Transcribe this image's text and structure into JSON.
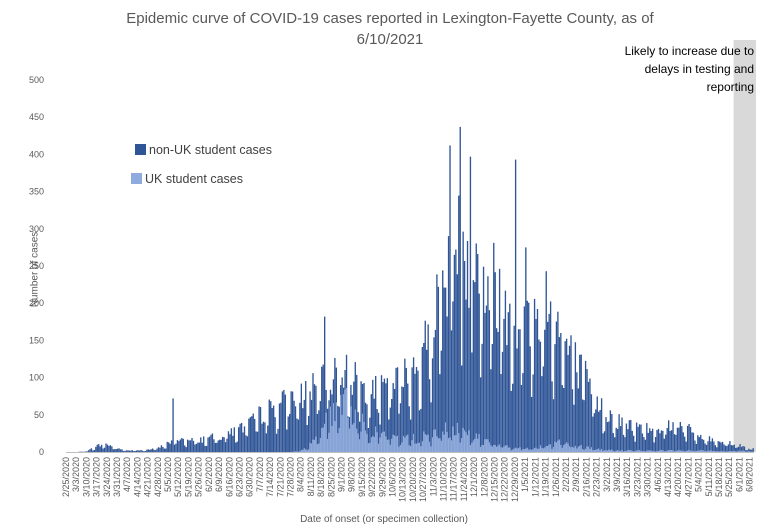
{
  "chart_data": {
    "type": "bar",
    "stacked": true,
    "title": "Epidemic curve of COVID-19 cases reported in Lexington-Fayette County, as of",
    "title_line2": "6/10/2021",
    "xlabel": "Date of onset (or specimen collection)",
    "ylabel": "Number of cases",
    "ylim": [
      0,
      500
    ],
    "yticks": [
      "0",
      "50",
      "100",
      "150",
      "200",
      "250",
      "300",
      "350",
      "400",
      "450",
      "500"
    ],
    "x_range": [
      "2/25/2020",
      "6/10/2021"
    ],
    "grid": false,
    "legend_position": "upper-left inside",
    "xtick_labels": [
      "2/25/2020",
      "3/3/2020",
      "3/10/2020",
      "3/17/2020",
      "3/24/2020",
      "3/31/2020",
      "4/7/2020",
      "4/14/2020",
      "4/21/2020",
      "4/28/2020",
      "5/5/2020",
      "5/12/2020",
      "5/19/2020",
      "5/26/2020",
      "6/2/2020",
      "6/9/2020",
      "6/16/2020",
      "6/23/2020",
      "6/30/2020",
      "7/7/2020",
      "7/14/2020",
      "7/21/2020",
      "7/28/2020",
      "8/4/2020",
      "8/11/2020",
      "8/18/2020",
      "8/25/2020",
      "9/1/2020",
      "9/8/2020",
      "9/15/2020",
      "9/22/2020",
      "9/29/2020",
      "10/6/2020",
      "10/13/2020",
      "10/20/2020",
      "10/27/2020",
      "11/3/2020",
      "11/10/2020",
      "11/17/2020",
      "11/24/2020",
      "12/1/2020",
      "12/8/2020",
      "12/15/2020",
      "12/22/2020",
      "12/29/2020",
      "1/5/2021",
      "1/12/2021",
      "1/19/2021",
      "1/26/2021",
      "2/2/2021",
      "2/9/2021",
      "2/16/2021",
      "2/23/2021",
      "3/2/2021",
      "3/9/2021",
      "3/16/2021",
      "3/23/2021",
      "3/30/2021",
      "4/6/2021",
      "4/13/2021",
      "4/20/2021",
      "4/27/2021",
      "5/4/2021",
      "5/11/2021",
      "5/18/2021",
      "5/25/2021",
      "6/1/2021",
      "6/8/2021"
    ],
    "shaded_region": {
      "from": "5/28/2021",
      "to": "6/10/2021",
      "label": "Likely to increase due to delays in testing and reporting",
      "color": "#d9d9d9"
    },
    "weekly_total_levels": [
      0,
      0,
      1,
      8,
      10,
      4,
      2,
      2,
      3,
      5,
      12,
      18,
      14,
      16,
      18,
      20,
      26,
      30,
      36,
      48,
      55,
      62,
      68,
      72,
      78,
      85,
      100,
      108,
      95,
      82,
      75,
      78,
      85,
      95,
      110,
      130,
      170,
      225,
      260,
      270,
      240,
      210,
      215,
      195,
      170,
      160,
      170,
      185,
      165,
      135,
      110,
      90,
      65,
      50,
      40,
      35,
      32,
      30,
      32,
      35,
      38,
      28,
      20,
      16,
      14,
      12,
      8,
      4
    ],
    "weekly_uk_student_levels": [
      0,
      0,
      0,
      0,
      0,
      0,
      0,
      0,
      0,
      0,
      0,
      0,
      0,
      0,
      0,
      0,
      0,
      0,
      0,
      0,
      0,
      0,
      0,
      2,
      10,
      25,
      55,
      70,
      55,
      40,
      30,
      25,
      20,
      18,
      18,
      20,
      22,
      28,
      32,
      28,
      20,
      15,
      10,
      8,
      6,
      5,
      6,
      10,
      14,
      12,
      8,
      6,
      4,
      3,
      2,
      2,
      2,
      2,
      2,
      2,
      2,
      2,
      2,
      2,
      1,
      1,
      2,
      1
    ],
    "spikes": [
      {
        "date": "11/21/2020",
        "total": 437
      },
      {
        "date": "11/14/2020",
        "total": 412
      },
      {
        "date": "11/28/2020",
        "total": 397
      },
      {
        "date": "12/29/2020",
        "total": 393
      },
      {
        "date": "1/5/2021",
        "total": 275
      },
      {
        "date": "1/19/2021",
        "total": 243
      },
      {
        "date": "8/20/2020",
        "total": 182
      },
      {
        "date": "5/8/2020",
        "total": 72
      }
    ],
    "series": [
      {
        "name": "non-UK student cases",
        "color": "#2f5597"
      },
      {
        "name": "UK student cases",
        "color": "#8faadc"
      }
    ]
  }
}
